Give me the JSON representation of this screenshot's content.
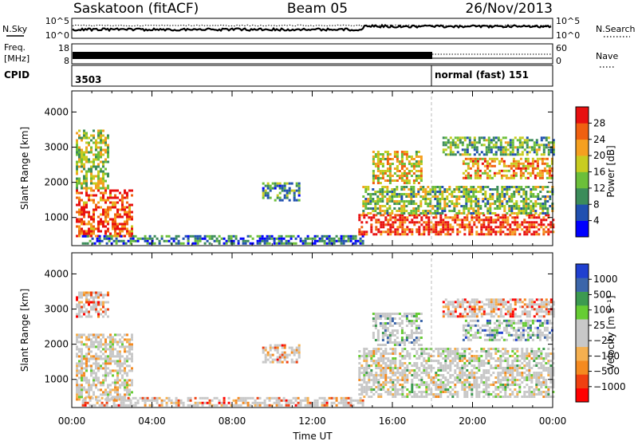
{
  "header": {
    "radar": "Saskatoon (fitACF)",
    "beam": "Beam 05",
    "date": "26/Nov/2013"
  },
  "housekeeping": {
    "nsky_label": "N.Sky",
    "nsky_ticks": [
      "10^5",
      "10^0"
    ],
    "nsearch_label": "N.Search",
    "nsearch_ticks": [
      "10^5",
      "10^0"
    ],
    "freq_label_line1": "Freq.",
    "freq_label_line2": "[MHz]",
    "freq_ticks": [
      "18",
      "8"
    ],
    "nave_label": "Nave",
    "nave_ticks": [
      "60",
      "0"
    ],
    "cpid_label": "CPID",
    "cpid_segments": [
      {
        "start_hour": 0,
        "text": "3503"
      },
      {
        "start_hour": 18,
        "text": "normal (fast) 151"
      }
    ]
  },
  "chart_data": [
    {
      "type": "heatmap",
      "title": "",
      "xlabel": "Time UT",
      "ylabel": "Slant Range [km]",
      "x_ticks": [
        "00:00",
        "04:00",
        "08:00",
        "12:00",
        "16:00",
        "20:00",
        "00:00"
      ],
      "xlim_hours": [
        0,
        24
      ],
      "ylim": [
        200,
        4600
      ],
      "y_ticks": [
        1000,
        2000,
        3000,
        4000
      ],
      "colorbar": {
        "label": "Power [dB]",
        "ticks": [
          "28",
          "24",
          "20",
          "16",
          "12",
          "8",
          "4"
        ],
        "colors": [
          "#0000ff",
          "#2050b0",
          "#3c8c5a",
          "#6cbf3a",
          "#c8cc20",
          "#f5a020",
          "#f06010",
          "#e81010"
        ]
      },
      "echo_regions": [
        {
          "start_hour": 0.2,
          "end_hour": 3.0,
          "min_km": 450,
          "max_km": 1800,
          "level": 0.85
        },
        {
          "start_hour": 0.2,
          "end_hour": 1.8,
          "min_km": 1800,
          "max_km": 3500,
          "level": 0.5
        },
        {
          "start_hour": 9.5,
          "end_hour": 11.3,
          "min_km": 1500,
          "max_km": 2000,
          "level": 0.35
        },
        {
          "start_hour": 0.5,
          "end_hour": 14.5,
          "min_km": 250,
          "max_km": 500,
          "level": 0.25
        },
        {
          "start_hour": 14.3,
          "end_hour": 24.0,
          "min_km": 500,
          "max_km": 1100,
          "level": 0.9
        },
        {
          "start_hour": 14.5,
          "end_hour": 24.0,
          "min_km": 1100,
          "max_km": 1900,
          "level": 0.45
        },
        {
          "start_hour": 15.0,
          "end_hour": 17.5,
          "min_km": 2000,
          "max_km": 2900,
          "level": 0.6
        },
        {
          "start_hour": 19.5,
          "end_hour": 24.0,
          "min_km": 2100,
          "max_km": 2700,
          "level": 0.7
        },
        {
          "start_hour": 18.5,
          "end_hour": 24.0,
          "min_km": 2800,
          "max_km": 3300,
          "level": 0.4
        }
      ]
    },
    {
      "type": "heatmap",
      "title": "",
      "xlabel": "Time UT",
      "ylabel": "Slant Range [km]",
      "x_ticks": [
        "00:00",
        "04:00",
        "08:00",
        "12:00",
        "16:00",
        "20:00",
        "00:00"
      ],
      "xlim_hours": [
        0,
        24
      ],
      "ylim": [
        200,
        4600
      ],
      "y_ticks": [
        1000,
        2000,
        3000,
        4000
      ],
      "colorbar": {
        "label": "Velocity [m s⁻¹]",
        "ticks": [
          "1000",
          "500",
          "100",
          "25",
          "−25",
          "−100",
          "−500",
          "−1000"
        ],
        "colors": [
          "#ff0000",
          "#f04010",
          "#f58a20",
          "#f5b050",
          "#c8c8c8",
          "#c8c8c8",
          "#66cc33",
          "#3c9a50",
          "#3c66aa",
          "#2040d0"
        ]
      },
      "echo_regions": [
        {
          "start_hour": 0.2,
          "end_hour": 3.0,
          "min_km": 450,
          "max_km": 2300,
          "level": 0.45
        },
        {
          "start_hour": 0.2,
          "end_hour": 1.8,
          "min_km": 2800,
          "max_km": 3500,
          "level": 0.25
        },
        {
          "start_hour": 9.5,
          "end_hour": 11.3,
          "min_km": 1500,
          "max_km": 2000,
          "level": 0.3
        },
        {
          "start_hour": 0.5,
          "end_hour": 14.5,
          "min_km": 250,
          "max_km": 500,
          "level": 0.3
        },
        {
          "start_hour": 14.3,
          "end_hour": 24.0,
          "min_km": 500,
          "max_km": 1900,
          "level": 0.5
        },
        {
          "start_hour": 15.0,
          "end_hour": 17.5,
          "min_km": 2000,
          "max_km": 2900,
          "level": 0.65
        },
        {
          "start_hour": 19.5,
          "end_hour": 24.0,
          "min_km": 2100,
          "max_km": 2700,
          "level": 0.75
        },
        {
          "start_hour": 18.5,
          "end_hour": 24.0,
          "min_km": 2800,
          "max_km": 3300,
          "level": 0.25
        }
      ]
    }
  ]
}
